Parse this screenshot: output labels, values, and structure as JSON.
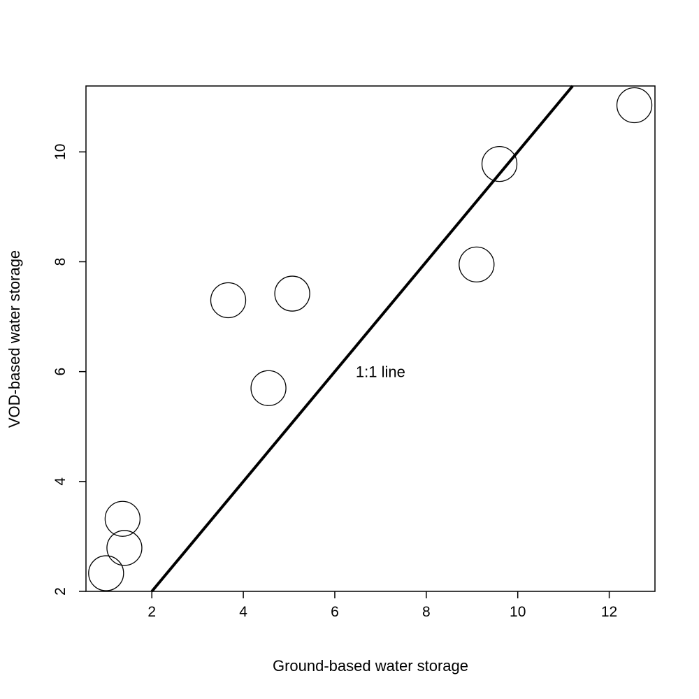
{
  "chart_data": {
    "type": "scatter",
    "title": "",
    "xlabel": "Ground-based water storage",
    "ylabel": "VOD-based water storage",
    "xlim": [
      0.56,
      13.0
    ],
    "ylim": [
      2.0,
      11.2
    ],
    "x_ticks": [
      2,
      4,
      6,
      8,
      10,
      12
    ],
    "y_ticks": [
      2,
      4,
      6,
      8,
      10
    ],
    "grid": false,
    "legend": "none",
    "marker": "open-circle",
    "series": [
      {
        "points": [
          {
            "x": 1.0,
            "y": 2.33
          },
          {
            "x": 1.4,
            "y": 2.79
          },
          {
            "x": 1.36,
            "y": 3.32
          },
          {
            "x": 3.67,
            "y": 7.3
          },
          {
            "x": 4.55,
            "y": 5.7
          },
          {
            "x": 5.07,
            "y": 7.42
          },
          {
            "x": 9.1,
            "y": 7.95
          },
          {
            "x": 9.6,
            "y": 9.78
          },
          {
            "x": 12.55,
            "y": 10.85
          }
        ]
      }
    ],
    "reference_line": {
      "slope": 1,
      "intercept": 0,
      "label": "1:1 line",
      "label_x": 7.0,
      "label_y": 6.0
    },
    "colors": {
      "points": "#000000",
      "line": "#000000",
      "axis": "#000000"
    }
  }
}
